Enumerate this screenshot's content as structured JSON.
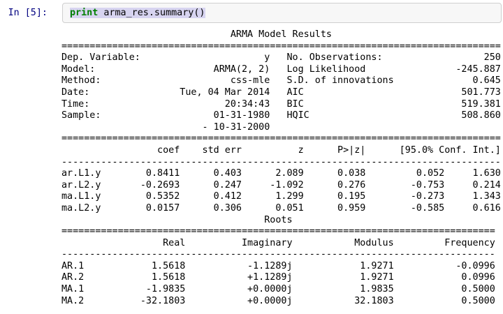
{
  "colors": {
    "prompt_color": "#000080",
    "keyword_color": "#008000",
    "selection": "#d7d4f0",
    "cell_border": "#cfcfcf",
    "cell_bg": "#f7f7f7"
  },
  "cell": {
    "prompt": "In [5]:",
    "code": {
      "keyword": "print",
      "rest": " arma_res.summary()"
    }
  },
  "output": {
    "lines": [
      "                              ARMA Model Results",
      "==============================================================================",
      "Dep. Variable:                      y   No. Observations:                  250",
      "Model:                     ARMA(2, 2)   Log Likelihood                -245.887",
      "Method:                       css-mle   S.D. of innovations              0.645",
      "Date:                Tue, 04 Mar 2014   AIC                            501.773",
      "Time:                        20:34:43   BIC                            519.381",
      "Sample:                    01-31-1980   HQIC                           508.860",
      "                         - 10-31-2000",
      "==============================================================================",
      "                 coef    std err          z      P>|z|      [95.0% Conf. Int.]",
      "------------------------------------------------------------------------------",
      "ar.L1.y        0.8411      0.403      2.089      0.038         0.052     1.630",
      "ar.L2.y       -0.2693      0.247     -1.092      0.276        -0.753     0.214",
      "ma.L1.y        0.5352      0.412      1.299      0.195        -0.273     1.343",
      "ma.L2.y        0.0157      0.306      0.051      0.959        -0.585     0.616",
      "                                    Roots",
      "=============================================================================",
      "                  Real          Imaginary           Modulus         Frequency",
      "-----------------------------------------------------------------------------",
      "AR.1            1.5618           -1.1289j            1.9271           -0.0996",
      "AR.2            1.5618           +1.1289j            1.9271            0.0996",
      "MA.1           -1.9835           +0.0000j            1.9835            0.5000",
      "MA.2          -32.1803           +0.0000j           32.1803            0.5000"
    ]
  },
  "summary": {
    "title": "ARMA Model Results",
    "info_left": [
      {
        "label": "Dep. Variable:",
        "value": "y"
      },
      {
        "label": "Model:",
        "value": "ARMA(2, 2)"
      },
      {
        "label": "Method:",
        "value": "css-mle"
      },
      {
        "label": "Date:",
        "value": "Tue, 04 Mar 2014"
      },
      {
        "label": "Time:",
        "value": "20:34:43"
      },
      {
        "label": "Sample:",
        "value": "01-31-1980 - 10-31-2000"
      }
    ],
    "info_right": [
      {
        "label": "No. Observations:",
        "value": "250"
      },
      {
        "label": "Log Likelihood",
        "value": "-245.887"
      },
      {
        "label": "S.D. of innovations",
        "value": "0.645"
      },
      {
        "label": "AIC",
        "value": "501.773"
      },
      {
        "label": "BIC",
        "value": "519.381"
      },
      {
        "label": "HQIC",
        "value": "508.860"
      }
    ],
    "params_table": {
      "headers": [
        "",
        "coef",
        "std err",
        "z",
        "P>|z|",
        "[95.0% Conf. Int.]"
      ],
      "rows": [
        [
          "ar.L1.y",
          "0.8411",
          "0.403",
          "2.089",
          "0.038",
          "0.052",
          "1.630"
        ],
        [
          "ar.L2.y",
          "-0.2693",
          "0.247",
          "-1.092",
          "0.276",
          "-0.753",
          "0.214"
        ],
        [
          "ma.L1.y",
          "0.5352",
          "0.412",
          "1.299",
          "0.195",
          "-0.273",
          "1.343"
        ],
        [
          "ma.L2.y",
          "0.0157",
          "0.306",
          "0.051",
          "0.959",
          "-0.585",
          "0.616"
        ]
      ]
    },
    "roots_table": {
      "title": "Roots",
      "headers": [
        "",
        "Real",
        "Imaginary",
        "Modulus",
        "Frequency"
      ],
      "rows": [
        [
          "AR.1",
          "1.5618",
          "-1.1289j",
          "1.9271",
          "-0.0996"
        ],
        [
          "AR.2",
          "1.5618",
          "+1.1289j",
          "1.9271",
          "0.0996"
        ],
        [
          "MA.1",
          "-1.9835",
          "+0.0000j",
          "1.9835",
          "0.5000"
        ],
        [
          "MA.2",
          "-32.1803",
          "+0.0000j",
          "32.1803",
          "0.5000"
        ]
      ]
    }
  }
}
